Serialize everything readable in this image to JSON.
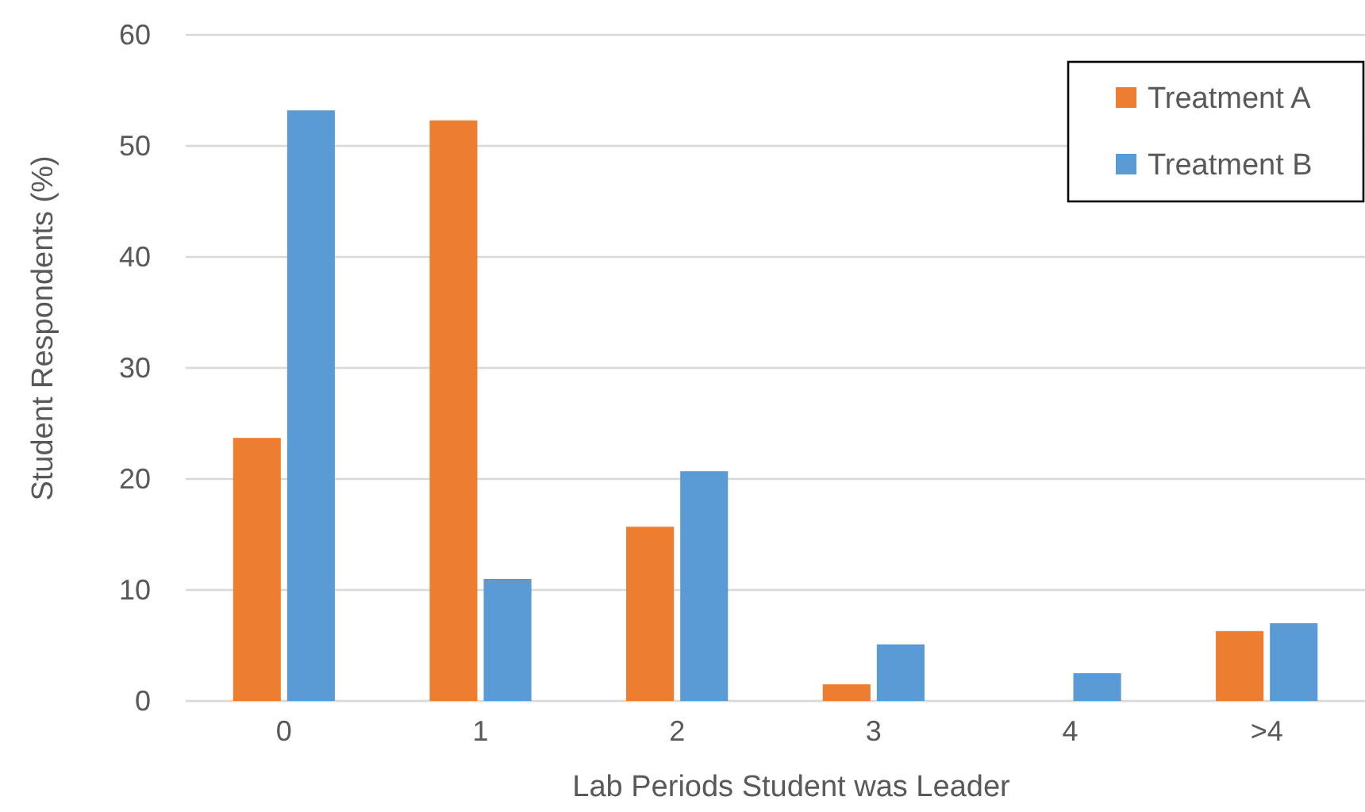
{
  "chart_data": {
    "type": "bar",
    "xlabel": "Lab Periods Student was Leader",
    "ylabel": "Student Respondents (%)",
    "categories": [
      "0",
      "1",
      "2",
      "3",
      "4",
      ">4"
    ],
    "series": [
      {
        "name": "Treatment A",
        "color": "#ed7d31",
        "values": [
          23.7,
          52.3,
          15.7,
          1.5,
          0,
          6.3
        ]
      },
      {
        "name": "Treatment B",
        "color": "#5b9bd5",
        "values": [
          53.2,
          11.0,
          20.7,
          5.1,
          2.5,
          7.0
        ]
      }
    ],
    "ylim": [
      0,
      60
    ],
    "yticks": [
      0,
      10,
      20,
      30,
      40,
      50,
      60
    ],
    "grid": "y",
    "legend": "top right"
  }
}
